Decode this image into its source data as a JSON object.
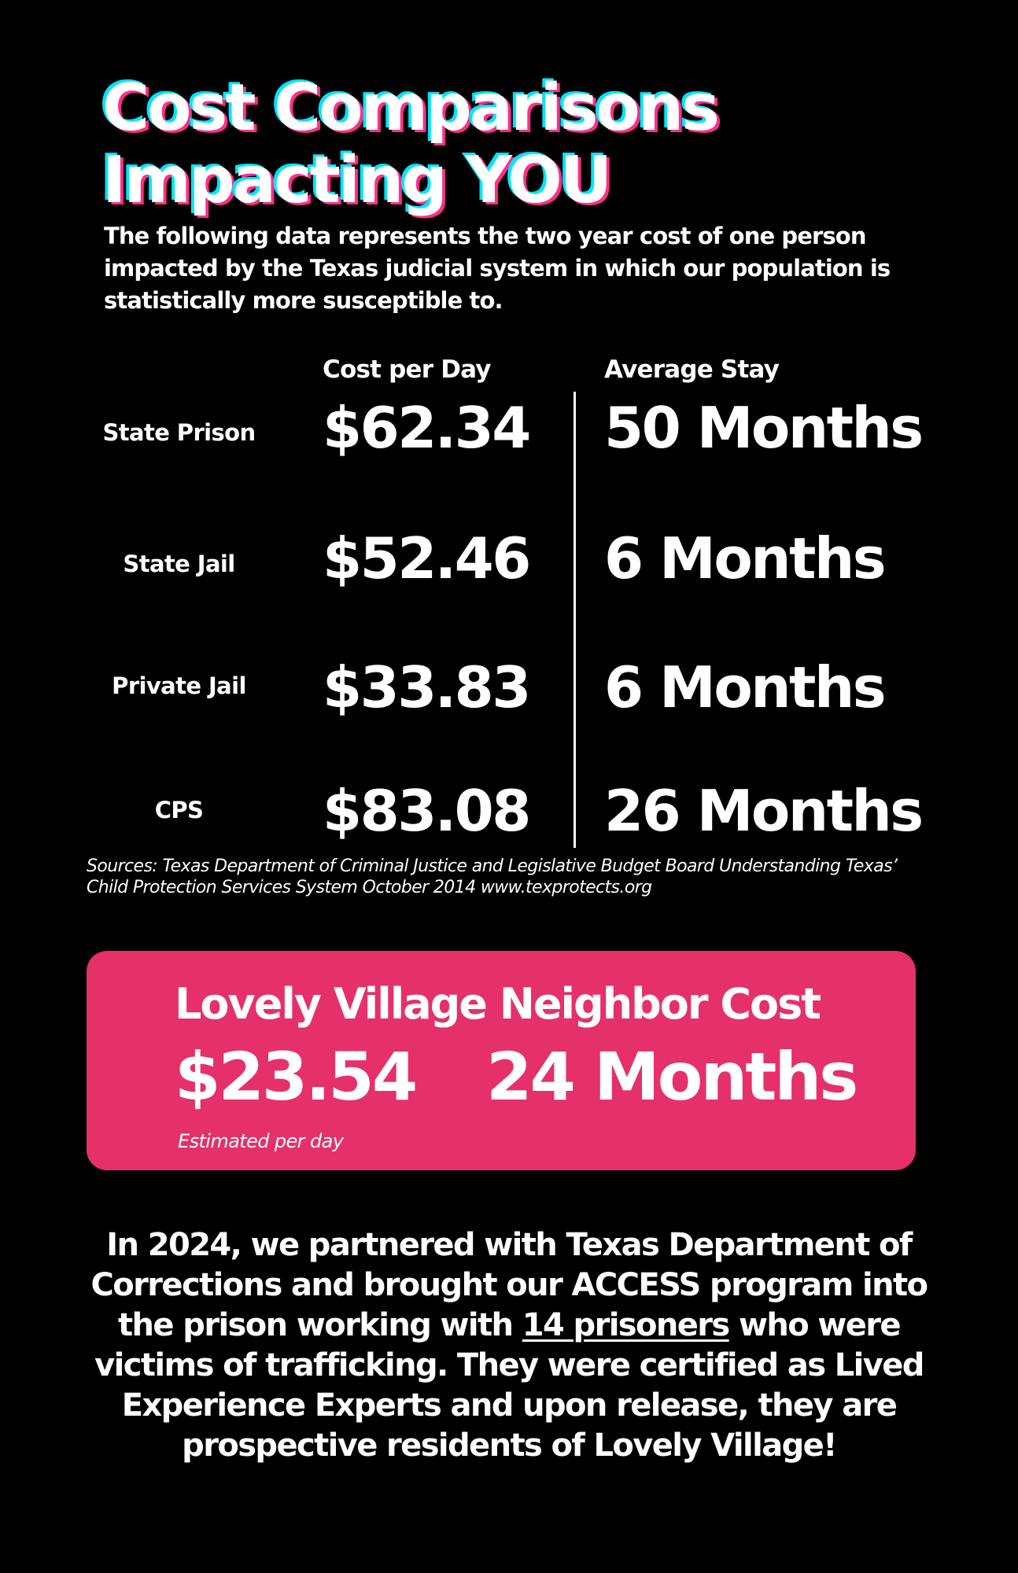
{
  "title": {
    "line1": "Cost Comparisons",
    "line2": "Impacting YOU"
  },
  "intro": "The following data represents the two year cost of one person impacted by the Texas judicial system in which our population is statistically more susceptible to.",
  "table": {
    "cost_header": "Cost per Day",
    "stay_header": "Average Stay",
    "rows": [
      {
        "label": "State Prison",
        "cost": "$62.34",
        "stay": "50 Months"
      },
      {
        "label": "State Jail",
        "cost": "$52.46",
        "stay": "6 Months"
      },
      {
        "label": "Private Jail",
        "cost": "$33.83",
        "stay": "6 Months"
      },
      {
        "label": "CPS",
        "cost": "$83.08",
        "stay": "26 Months"
      }
    ]
  },
  "sources": "Sources: Texas Department of Criminal Justice and Legislative Budget Board Understanding Texas’ Child Protection Services System October 2014 www.texprotects.org",
  "card": {
    "title": "Lovely Village Neighbor Cost",
    "cost": "$23.54",
    "stay": "24 Months",
    "note": "Estimated per day"
  },
  "closing": {
    "before": "In 2024, we partnered with Texas Department of Corrections and brought our ACCESS program into the prison working with ",
    "highlight": "14 prisoners",
    "after": " who were victims of trafficking. They were certified as Lived Experience Experts and upon release, they are prospective residents of Lovely Village!"
  },
  "colors": {
    "background": "#000000",
    "card": "#e5306a",
    "title_shadow_cyan": "#00e5ff",
    "title_shadow_pink": "#ff2e88"
  }
}
